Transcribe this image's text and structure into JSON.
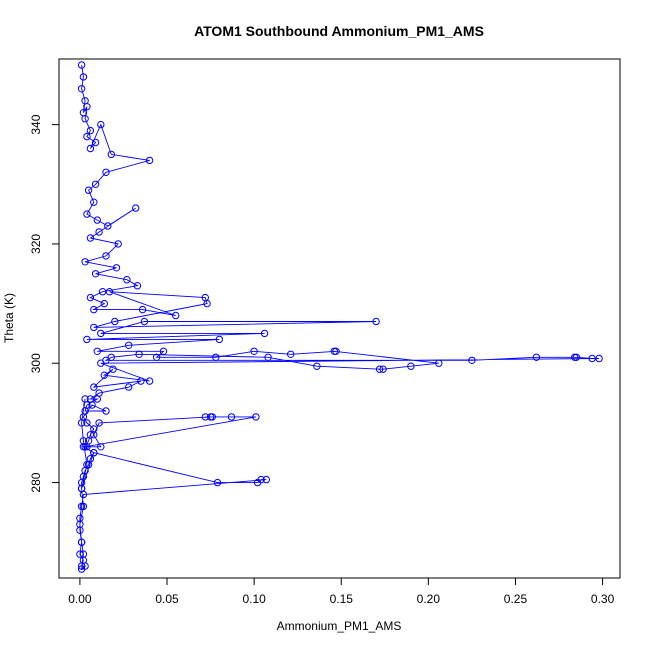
{
  "chart_data": {
    "type": "line",
    "title": "ATOM1 Southbound Ammonium_PM1_AMS",
    "xlabel": "Ammonium_PM1_AMS",
    "ylabel": "Theta (K)",
    "xlim": [
      -0.012,
      0.31
    ],
    "ylim": [
      264,
      351
    ],
    "xticks": [
      0.0,
      0.05,
      0.1,
      0.15,
      0.2,
      0.25,
      0.3
    ],
    "xtick_labels": [
      "0.00",
      "0.05",
      "0.10",
      "0.15",
      "0.20",
      "0.25",
      "0.30"
    ],
    "yticks": [
      280,
      300,
      320,
      340
    ],
    "ytick_labels": [
      "280",
      "300",
      "320",
      "340"
    ],
    "grid": false,
    "markers": "open-circle",
    "color": "#0000ff",
    "series": [
      {
        "x": [
          0.001,
          0.002,
          0.001,
          0.003,
          0.002,
          0.004,
          0.003,
          0.006,
          0.004,
          0.009,
          0.006,
          0.012,
          0.018,
          0.04,
          0.015,
          0.009,
          0.005,
          0.008,
          0.004,
          0.01,
          0.016,
          0.032,
          0.011,
          0.006,
          0.022,
          0.015,
          0.003,
          0.021,
          0.009,
          0.027,
          0.033,
          0.013,
          0.006,
          0.014,
          0.008,
          0.036,
          0.055,
          0.017,
          0.072,
          0.073,
          0.02,
          0.008,
          0.17,
          0.037,
          0.012,
          0.106,
          0.004,
          0.08,
          0.028,
          0.01,
          0.048,
          0.044,
          0.078,
          0.1,
          0.121,
          0.147,
          0.146,
          0.206,
          0.19,
          0.174,
          0.172,
          0.136,
          0.108,
          0.034,
          0.018,
          0.015,
          0.225,
          0.262,
          0.284,
          0.285,
          0.294,
          0.298,
          0.012,
          0.04,
          0.014,
          0.019,
          0.008,
          0.035,
          0.028,
          0.011,
          0.006,
          0.01,
          0.004,
          0.003,
          0.015,
          0.007,
          0.002,
          0.004,
          0.008,
          0.006,
          0.005,
          0.003,
          0.101,
          0.087,
          0.076,
          0.072,
          0.075,
          0.011,
          0.008,
          0.012,
          0.004,
          0.002,
          0.008,
          0.006,
          0.005,
          0.003,
          0.002,
          0.001,
          0.001,
          0.008,
          0.079,
          0.102,
          0.104,
          0.107,
          0.002,
          0.001,
          0.0,
          0.0,
          0.001,
          0.0,
          0.002,
          0.001,
          0.003,
          0.001,
          0.002,
          0.001,
          0.0,
          0.002,
          0.001,
          0.004,
          0.002,
          0.001,
          0.003
        ],
        "y": [
          350,
          348,
          346,
          344,
          342,
          343,
          341,
          339,
          338,
          337,
          336,
          340,
          335,
          334,
          332,
          330,
          329,
          327,
          325,
          324,
          323,
          326,
          322,
          321,
          320,
          318,
          317,
          316,
          315,
          314,
          313,
          312,
          311,
          310,
          309,
          309,
          308,
          312,
          311,
          310,
          307,
          306,
          307,
          307,
          305,
          305,
          304,
          304,
          303,
          302,
          302,
          301,
          301,
          302,
          301.5,
          302,
          302,
          300,
          299.5,
          299,
          299,
          299.5,
          301,
          301.5,
          301,
          300.5,
          300.5,
          301,
          301,
          301,
          300.8,
          300.8,
          300,
          297,
          298,
          299,
          296,
          297,
          296,
          295,
          294,
          294,
          293,
          292,
          292,
          293,
          291,
          290,
          289,
          288,
          287,
          286,
          291,
          291,
          291,
          291,
          291,
          290,
          288,
          286,
          286,
          286,
          285,
          284,
          283,
          282,
          281,
          280,
          279,
          285,
          280,
          280,
          280.5,
          280.5,
          278,
          276,
          274,
          272,
          270,
          268,
          267,
          266,
          266,
          265.5,
          268,
          270,
          273,
          276,
          279,
          283,
          287,
          290,
          294
        ]
      }
    ]
  }
}
